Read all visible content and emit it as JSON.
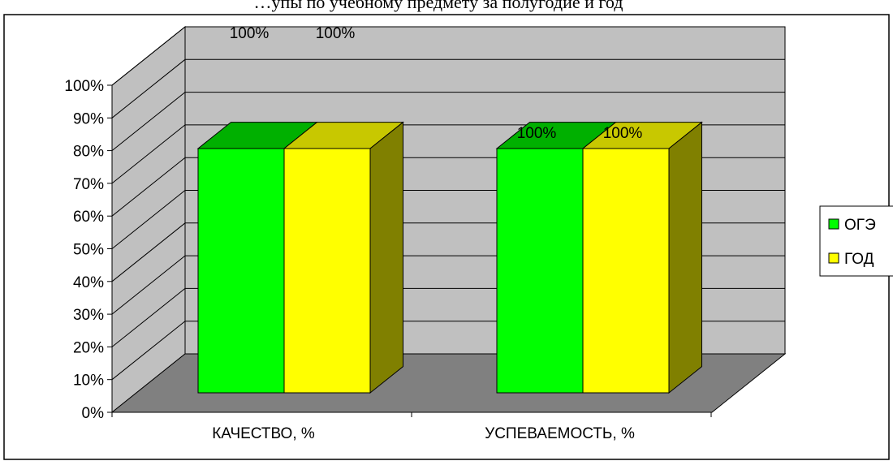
{
  "chart_data": {
    "type": "bar",
    "style": "3d-clustered-column",
    "title": "…упы по учебному предмету за полугодие и год",
    "categories": [
      "КАЧЕСТВО, %",
      "УСПЕВАЕМОСТЬ, %"
    ],
    "series": [
      {
        "name": "ОГЭ",
        "values": [
          100,
          100
        ],
        "data_labels": [
          "100%",
          "100%"
        ],
        "color": "#00ff00"
      },
      {
        "name": "ГОД",
        "values": [
          100,
          100
        ],
        "data_labels": [
          "100%",
          "100%"
        ],
        "color": "#ffff00"
      }
    ],
    "y_ticks": [
      "0%",
      "10%",
      "20%",
      "30%",
      "40%",
      "50%",
      "60%",
      "70%",
      "80%",
      "90%",
      "100%"
    ],
    "ylim": [
      0,
      100
    ],
    "grid": true,
    "legend_position": "right",
    "colors": {
      "back_wall": "#c0c0c0",
      "floor": "#808080",
      "ОГЭ_top": "#00b000",
      "ГОД_top": "#c8c800",
      "ГОД_side": "#808000",
      "border": "#000000"
    }
  }
}
